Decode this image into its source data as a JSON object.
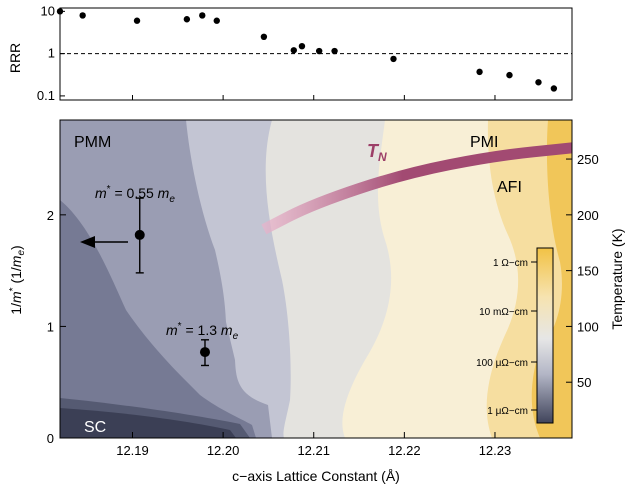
{
  "chart_data": [
    {
      "type": "scatter",
      "ylabel": "RRR",
      "yscale": "log",
      "ylim": [
        0.08,
        12
      ],
      "xlim": [
        12.182,
        12.2385
      ],
      "y_ticks": [
        {
          "value": 10,
          "label": "10"
        },
        {
          "value": 1,
          "label": "1"
        },
        {
          "value": 0.1,
          "label": "0.1"
        }
      ],
      "reference_line": {
        "y": 1,
        "style": "dashed"
      },
      "points": [
        {
          "x": 12.182,
          "y": 10
        },
        {
          "x": 12.1845,
          "y": 8
        },
        {
          "x": 12.1905,
          "y": 6
        },
        {
          "x": 12.196,
          "y": 6.5
        },
        {
          "x": 12.1977,
          "y": 8
        },
        {
          "x": 12.1993,
          "y": 6
        },
        {
          "x": 12.2045,
          "y": 2.5
        },
        {
          "x": 12.2078,
          "y": 1.2
        },
        {
          "x": 12.2087,
          "y": 1.5
        },
        {
          "x": 12.2106,
          "y": 1.15
        },
        {
          "x": 12.2123,
          "y": 1.15
        },
        {
          "x": 12.2188,
          "y": 0.75
        },
        {
          "x": 12.2283,
          "y": 0.37
        },
        {
          "x": 12.2316,
          "y": 0.31
        },
        {
          "x": 12.2348,
          "y": 0.21
        },
        {
          "x": 12.2365,
          "y": 0.15
        }
      ]
    },
    {
      "type": "heatmap",
      "xlabel": "c−axis Lattice Constant (Å)",
      "ylabel_left": "1/m* (1/m_e)",
      "ylabel_left_parts": {
        "prefix": "1/",
        "m": "m",
        "sup": "*",
        "mid": " (1/",
        "m2": "m",
        "sub": "e",
        "suffix": ")"
      },
      "ylabel_right": "Temperature (K)",
      "xlim": [
        12.182,
        12.2385
      ],
      "x_ticks": [
        "12.19",
        "12.20",
        "12.21",
        "12.22",
        "12.23"
      ],
      "y_left_ticks": [
        {
          "value": 0,
          "label": "0"
        },
        {
          "value": 1,
          "label": "1"
        },
        {
          "value": 2,
          "label": "2"
        }
      ],
      "y_left_range": [
        0,
        2.85
      ],
      "y_right_ticks": [
        {
          "value": 50,
          "label": "50"
        },
        {
          "value": 100,
          "label": "100"
        },
        {
          "value": 150,
          "label": "150"
        },
        {
          "value": 200,
          "label": "200"
        },
        {
          "value": 250,
          "label": "250"
        }
      ],
      "y_right_range": [
        0,
        285
      ],
      "regions": [
        {
          "label": "PMM",
          "position": "top-left"
        },
        {
          "label": "PMI",
          "position": "top-right"
        },
        {
          "label": "AFI",
          "position": "right"
        },
        {
          "label": "SC",
          "position": "bottom-left"
        }
      ],
      "tn_label": "T",
      "tn_sub": "N",
      "tn_curve": [
        {
          "x": 12.2045,
          "T": 187
        },
        {
          "x": 12.21,
          "T": 210
        },
        {
          "x": 12.22,
          "T": 237
        },
        {
          "x": 12.23,
          "T": 253
        },
        {
          "x": 12.2385,
          "T": 260
        }
      ],
      "mass_points": [
        {
          "x": 12.1908,
          "y": 1.82,
          "y_low": 1.48,
          "y_high": 2.15,
          "label_prefix": "m",
          "label_sup": "*",
          "label_value": " = 0.55 ",
          "label_unit": "m",
          "label_sub": "e",
          "arrow": "left"
        },
        {
          "x": 12.198,
          "y": 0.77,
          "y_low": 0.65,
          "y_high": 0.88,
          "label_prefix": "m",
          "label_sup": "*",
          "label_value": " = 1.3 ",
          "label_unit": "m",
          "label_sub": "e"
        }
      ],
      "colorbar": {
        "labels": [
          "1 Ω−cm",
          "10 mΩ−cm",
          "100 μΩ−cm",
          "1 μΩ−cm"
        ],
        "colors": [
          "#f2c245",
          "#f6e3b0",
          "#e6e6e6",
          "#b3b6c6",
          "#40445b"
        ]
      },
      "colors": {
        "sc": "#3b3f55",
        "metal_dark": "#767a94",
        "metal_mid": "#9a9db3",
        "metal_light": "#c3c5d3",
        "crossover": "#e4e3df",
        "insulator_light": "#f8efd6",
        "insulator_mid": "#f6dea0",
        "insulator_deep": "#f1c659",
        "tn_band": "#a24a72"
      }
    }
  ]
}
